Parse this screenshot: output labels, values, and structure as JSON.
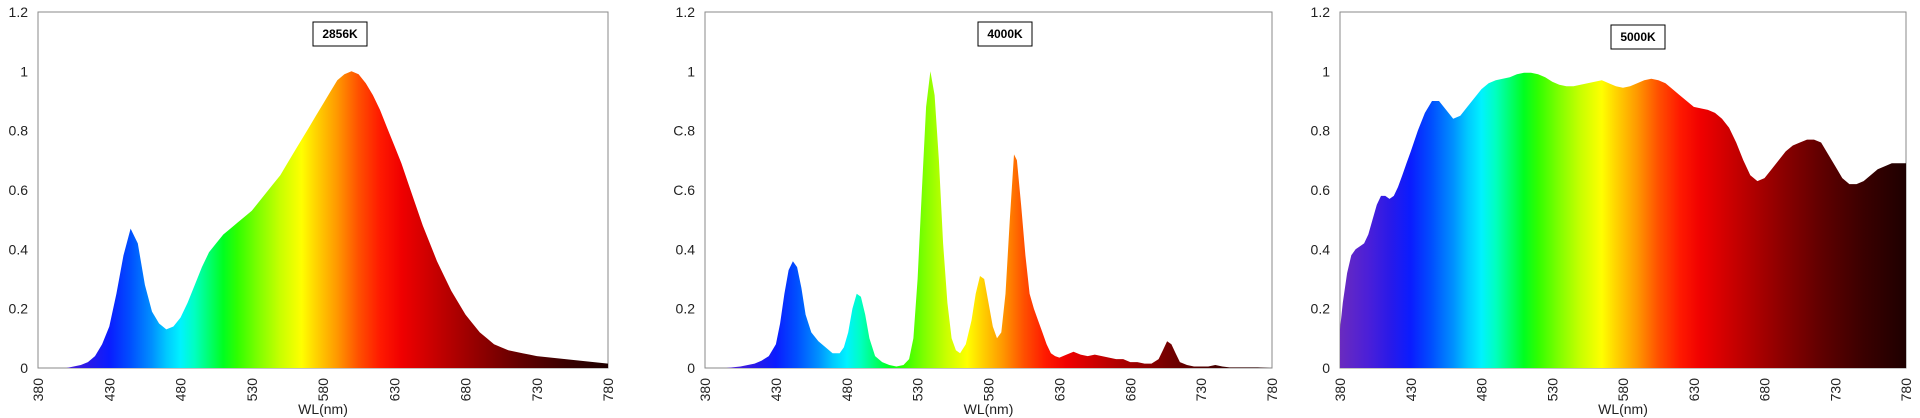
{
  "chart_data": [
    {
      "type": "area",
      "title": "2856K",
      "xlabel": "WL(nm)",
      "ylabel": "",
      "xlim": [
        380,
        780
      ],
      "ylim": [
        0,
        1.2
      ],
      "x_ticks": [
        "380",
        "430",
        "480",
        "530",
        "580",
        "630",
        "680",
        "730",
        "780"
      ],
      "y_ticks": [
        "0",
        "0.2",
        "0.4",
        "0.6",
        "0.8",
        "1",
        "1.2"
      ],
      "grid": false,
      "fill": "wavelength-spectrum",
      "x": [
        380,
        390,
        400,
        405,
        410,
        415,
        420,
        425,
        430,
        435,
        440,
        445,
        450,
        455,
        460,
        465,
        470,
        475,
        480,
        485,
        490,
        495,
        500,
        505,
        510,
        515,
        520,
        525,
        530,
        535,
        540,
        545,
        550,
        555,
        560,
        565,
        570,
        575,
        580,
        585,
        590,
        595,
        600,
        605,
        610,
        615,
        620,
        625,
        630,
        635,
        640,
        645,
        650,
        655,
        660,
        665,
        670,
        675,
        680,
        685,
        690,
        695,
        700,
        705,
        710,
        715,
        720,
        725,
        730,
        740,
        750,
        760,
        770,
        780
      ],
      "values": [
        0,
        0,
        0,
        0.005,
        0.01,
        0.02,
        0.04,
        0.08,
        0.14,
        0.25,
        0.38,
        0.47,
        0.42,
        0.28,
        0.19,
        0.15,
        0.13,
        0.14,
        0.17,
        0.22,
        0.28,
        0.34,
        0.39,
        0.42,
        0.45,
        0.47,
        0.49,
        0.51,
        0.53,
        0.56,
        0.59,
        0.62,
        0.65,
        0.69,
        0.73,
        0.77,
        0.81,
        0.85,
        0.89,
        0.93,
        0.97,
        0.99,
        1.0,
        0.99,
        0.96,
        0.92,
        0.87,
        0.81,
        0.75,
        0.69,
        0.62,
        0.55,
        0.48,
        0.42,
        0.36,
        0.31,
        0.26,
        0.22,
        0.18,
        0.15,
        0.12,
        0.1,
        0.08,
        0.07,
        0.06,
        0.055,
        0.05,
        0.045,
        0.04,
        0.035,
        0.03,
        0.025,
        0.02,
        0.015
      ]
    },
    {
      "type": "area",
      "title": "4000K",
      "xlabel": "WL(nm)",
      "ylabel": "",
      "xlim": [
        380,
        780
      ],
      "ylim": [
        0,
        1.2
      ],
      "x_ticks": [
        "380",
        "430",
        "480",
        "530",
        "580",
        "630",
        "680",
        "730",
        "780"
      ],
      "y_ticks": [
        "0",
        "0.2",
        "0.4",
        "C.6",
        "C.8",
        "1",
        "1.2"
      ],
      "grid": false,
      "fill": "wavelength-spectrum",
      "x": [
        380,
        395,
        405,
        415,
        420,
        425,
        430,
        433,
        436,
        439,
        442,
        445,
        448,
        451,
        455,
        460,
        465,
        470,
        475,
        478,
        481,
        484,
        487,
        490,
        493,
        496,
        500,
        505,
        510,
        515,
        520,
        524,
        527,
        530,
        533,
        536,
        539,
        542,
        545,
        548,
        551,
        554,
        557,
        560,
        564,
        568,
        571,
        574,
        577,
        580,
        583,
        586,
        589,
        592,
        595,
        598,
        600,
        603,
        606,
        609,
        612,
        615,
        618,
        621,
        624,
        627,
        630,
        635,
        640,
        645,
        650,
        655,
        660,
        665,
        670,
        675,
        680,
        685,
        690,
        695,
        700,
        703,
        706,
        709,
        712,
        715,
        720,
        725,
        730,
        735,
        740,
        745,
        750,
        755,
        760,
        770,
        780
      ],
      "values": [
        0,
        0,
        0.005,
        0.015,
        0.025,
        0.04,
        0.08,
        0.15,
        0.25,
        0.33,
        0.36,
        0.34,
        0.27,
        0.18,
        0.12,
        0.09,
        0.07,
        0.05,
        0.05,
        0.07,
        0.12,
        0.2,
        0.25,
        0.24,
        0.18,
        0.1,
        0.04,
        0.02,
        0.01,
        0.005,
        0.01,
        0.03,
        0.1,
        0.3,
        0.6,
        0.88,
        1.0,
        0.92,
        0.7,
        0.42,
        0.22,
        0.1,
        0.06,
        0.05,
        0.08,
        0.16,
        0.25,
        0.31,
        0.3,
        0.22,
        0.14,
        0.1,
        0.12,
        0.25,
        0.5,
        0.72,
        0.7,
        0.55,
        0.38,
        0.25,
        0.2,
        0.16,
        0.12,
        0.08,
        0.05,
        0.04,
        0.035,
        0.045,
        0.055,
        0.045,
        0.04,
        0.045,
        0.04,
        0.035,
        0.03,
        0.03,
        0.02,
        0.02,
        0.015,
        0.015,
        0.03,
        0.06,
        0.09,
        0.08,
        0.05,
        0.02,
        0.01,
        0.005,
        0.005,
        0.005,
        0.01,
        0.005,
        0.002,
        0.002,
        0.002,
        0.002,
        0
      ]
    },
    {
      "type": "area",
      "title": "5000K",
      "xlabel": "WL(nm)",
      "ylabel": "",
      "xlim": [
        380,
        780
      ],
      "ylim": [
        0,
        1.2
      ],
      "x_ticks": [
        "380",
        "430",
        "480",
        "530",
        "580",
        "630",
        "680",
        "730",
        "780"
      ],
      "y_ticks": [
        "0",
        "0.2",
        "0.4",
        "0.6",
        "0.8",
        "1",
        "1.2"
      ],
      "grid": false,
      "fill": "wavelength-spectrum",
      "x": [
        380,
        382,
        385,
        388,
        391,
        394,
        397,
        400,
        403,
        406,
        409,
        412,
        415,
        418,
        421,
        424,
        427,
        430,
        435,
        440,
        445,
        450,
        455,
        460,
        465,
        470,
        475,
        480,
        485,
        490,
        495,
        500,
        505,
        510,
        515,
        520,
        525,
        530,
        535,
        540,
        545,
        550,
        555,
        560,
        565,
        570,
        575,
        580,
        585,
        590,
        595,
        600,
        605,
        610,
        615,
        620,
        625,
        630,
        635,
        640,
        645,
        650,
        655,
        660,
        665,
        670,
        675,
        680,
        685,
        690,
        695,
        700,
        705,
        710,
        715,
        720,
        725,
        730,
        735,
        740,
        745,
        750,
        755,
        760,
        765,
        770,
        775,
        780
      ],
      "values": [
        0.13,
        0.22,
        0.32,
        0.38,
        0.4,
        0.41,
        0.42,
        0.45,
        0.5,
        0.55,
        0.58,
        0.58,
        0.57,
        0.58,
        0.61,
        0.65,
        0.69,
        0.73,
        0.8,
        0.86,
        0.9,
        0.9,
        0.87,
        0.84,
        0.85,
        0.88,
        0.91,
        0.94,
        0.96,
        0.97,
        0.975,
        0.98,
        0.99,
        0.995,
        0.995,
        0.99,
        0.98,
        0.965,
        0.955,
        0.95,
        0.95,
        0.955,
        0.96,
        0.965,
        0.97,
        0.96,
        0.95,
        0.945,
        0.95,
        0.96,
        0.97,
        0.975,
        0.97,
        0.96,
        0.94,
        0.92,
        0.9,
        0.88,
        0.875,
        0.87,
        0.86,
        0.84,
        0.81,
        0.76,
        0.7,
        0.65,
        0.63,
        0.64,
        0.67,
        0.7,
        0.73,
        0.75,
        0.76,
        0.77,
        0.77,
        0.76,
        0.72,
        0.68,
        0.64,
        0.62,
        0.62,
        0.63,
        0.65,
        0.67,
        0.68,
        0.69,
        0.69,
        0.69
      ]
    }
  ]
}
